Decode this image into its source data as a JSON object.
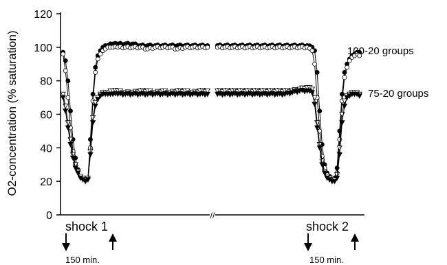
{
  "chart_data": {
    "type": "line",
    "ylabel": "O2-concentration (% saturation)",
    "ylim": [
      0,
      120
    ],
    "yticks": [
      0,
      20,
      40,
      60,
      80,
      100,
      120
    ],
    "x_axis_break": "//",
    "series": [
      {
        "name": "100-20 groups",
        "marker": "filled-circle",
        "segments": [
          [
            [
              0,
              97
            ],
            [
              1,
              92
            ],
            [
              2,
              80
            ],
            [
              3,
              62
            ],
            [
              4,
              45
            ],
            [
              5,
              34
            ],
            [
              6,
              27
            ],
            [
              7,
              23
            ],
            [
              8,
              22
            ],
            [
              9,
              21
            ],
            [
              10,
              22
            ],
            [
              11,
              45
            ],
            [
              12,
              72
            ],
            [
              13,
              88
            ],
            [
              14,
              95
            ],
            [
              15,
              98
            ],
            [
              16,
              100
            ],
            [
              17,
              101
            ],
            [
              18,
              101
            ],
            [
              19,
              102
            ],
            [
              20,
              102
            ],
            [
              22,
              102
            ],
            [
              25,
              102
            ],
            [
              28,
              102
            ],
            [
              31,
              101
            ],
            [
              34,
              101
            ],
            [
              37,
              101
            ],
            [
              40,
              101
            ],
            [
              43,
              101
            ],
            [
              46,
              101
            ],
            [
              49,
              101
            ],
            [
              52,
              101
            ],
            [
              55,
              101
            ],
            [
              58,
              101
            ]
          ],
          [
            [
              62,
              101
            ],
            [
              65,
              101
            ],
            [
              68,
              101
            ],
            [
              71,
              101
            ],
            [
              74,
              101
            ],
            [
              77,
              101
            ],
            [
              80,
              101
            ],
            [
              83,
              101
            ],
            [
              86,
              101
            ],
            [
              89,
              101
            ],
            [
              92,
              101
            ],
            [
              95,
              101
            ],
            [
              98,
              101
            ],
            [
              100,
              100
            ],
            [
              101,
              98
            ],
            [
              102,
              85
            ],
            [
              103,
              62
            ],
            [
              104,
              42
            ],
            [
              105,
              30
            ],
            [
              106,
              25
            ],
            [
              107,
              23
            ],
            [
              108,
              22
            ],
            [
              109,
              22
            ],
            [
              110,
              28
            ],
            [
              111,
              50
            ],
            [
              112,
              72
            ],
            [
              113,
              85
            ],
            [
              114,
              90
            ],
            [
              115,
              93
            ],
            [
              116,
              95
            ],
            [
              117,
              96
            ],
            [
              118,
              97
            ],
            [
              119,
              97
            ]
          ]
        ]
      },
      {
        "name": "100-20 groups",
        "marker": "open-circle",
        "segments": [
          [
            [
              0,
              96
            ],
            [
              1,
              86
            ],
            [
              2,
              70
            ],
            [
              3,
              52
            ],
            [
              4,
              38
            ],
            [
              5,
              30
            ],
            [
              6,
              26
            ],
            [
              7,
              23
            ],
            [
              8,
              22
            ],
            [
              9,
              21
            ],
            [
              10,
              22
            ],
            [
              11,
              40
            ],
            [
              12,
              68
            ],
            [
              13,
              85
            ],
            [
              14,
              93
            ],
            [
              15,
              96
            ],
            [
              16,
              98
            ],
            [
              17,
              99
            ],
            [
              18,
              100
            ],
            [
              19,
              100
            ],
            [
              20,
              100
            ],
            [
              22,
              100
            ],
            [
              25,
              100
            ],
            [
              28,
              100
            ],
            [
              31,
              100
            ],
            [
              34,
              99
            ],
            [
              37,
              100
            ],
            [
              40,
              100
            ],
            [
              43,
              100
            ],
            [
              46,
              99
            ],
            [
              49,
              100
            ],
            [
              52,
              100
            ],
            [
              55,
              100
            ],
            [
              58,
              100
            ]
          ],
          [
            [
              62,
              100
            ],
            [
              65,
              100
            ],
            [
              68,
              100
            ],
            [
              71,
              100
            ],
            [
              74,
              100
            ],
            [
              77,
              100
            ],
            [
              80,
              100
            ],
            [
              83,
              100
            ],
            [
              86,
              100
            ],
            [
              89,
              100
            ],
            [
              92,
              100
            ],
            [
              95,
              100
            ],
            [
              98,
              100
            ],
            [
              100,
              98
            ],
            [
              101,
              90
            ],
            [
              102,
              70
            ],
            [
              103,
              50
            ],
            [
              104,
              35
            ],
            [
              105,
              28
            ],
            [
              106,
              24
            ],
            [
              107,
              22
            ],
            [
              108,
              22
            ],
            [
              109,
              21
            ],
            [
              110,
              25
            ],
            [
              111,
              45
            ],
            [
              112,
              68
            ],
            [
              113,
              82
            ],
            [
              114,
              88
            ],
            [
              115,
              92
            ],
            [
              116,
              94
            ],
            [
              117,
              95
            ],
            [
              118,
              96
            ],
            [
              119,
              95
            ]
          ]
        ]
      },
      {
        "name": "75-20 groups",
        "marker": "open-triangle",
        "segments": [
          [
            [
              0,
              72
            ],
            [
              1,
              65
            ],
            [
              2,
              55
            ],
            [
              3,
              45
            ],
            [
              4,
              36
            ],
            [
              5,
              30
            ],
            [
              6,
              26
            ],
            [
              7,
              23
            ],
            [
              8,
              22
            ],
            [
              9,
              21
            ],
            [
              10,
              22
            ],
            [
              11,
              38
            ],
            [
              12,
              58
            ],
            [
              13,
              67
            ],
            [
              14,
              70
            ],
            [
              15,
              72
            ],
            [
              16,
              73
            ],
            [
              17,
              73
            ],
            [
              18,
              73
            ],
            [
              19,
              74
            ],
            [
              20,
              74
            ],
            [
              22,
              74
            ],
            [
              25,
              73
            ],
            [
              28,
              73
            ],
            [
              31,
              74
            ],
            [
              34,
              74
            ],
            [
              37,
              73
            ],
            [
              40,
              74
            ],
            [
              43,
              73
            ],
            [
              46,
              74
            ],
            [
              49,
              74
            ],
            [
              52,
              73
            ],
            [
              55,
              74
            ],
            [
              58,
              74
            ]
          ],
          [
            [
              62,
              74
            ],
            [
              65,
              74
            ],
            [
              68,
              74
            ],
            [
              71,
              74
            ],
            [
              74,
              74
            ],
            [
              77,
              74
            ],
            [
              80,
              74
            ],
            [
              83,
              74
            ],
            [
              86,
              74
            ],
            [
              89,
              74
            ],
            [
              92,
              74
            ],
            [
              95,
              75
            ],
            [
              98,
              76
            ],
            [
              100,
              75
            ],
            [
              101,
              70
            ],
            [
              102,
              55
            ],
            [
              103,
              42
            ],
            [
              104,
              32
            ],
            [
              105,
              26
            ],
            [
              106,
              23
            ],
            [
              107,
              22
            ],
            [
              108,
              21
            ],
            [
              109,
              21
            ],
            [
              110,
              24
            ],
            [
              111,
              40
            ],
            [
              112,
              60
            ],
            [
              113,
              68
            ],
            [
              114,
              71
            ],
            [
              115,
              72
            ],
            [
              116,
              73
            ],
            [
              117,
              73
            ],
            [
              118,
              73
            ],
            [
              119,
              72
            ]
          ]
        ]
      },
      {
        "name": "75-20 groups",
        "marker": "filled-triangle",
        "segments": [
          [
            [
              0,
              70
            ],
            [
              1,
              62
            ],
            [
              2,
              52
            ],
            [
              3,
              42
            ],
            [
              4,
              34
            ],
            [
              5,
              28
            ],
            [
              6,
              25
            ],
            [
              7,
              22
            ],
            [
              8,
              21
            ],
            [
              9,
              20
            ],
            [
              10,
              21
            ],
            [
              11,
              36
            ],
            [
              12,
              55
            ],
            [
              13,
              65
            ],
            [
              14,
              69
            ],
            [
              15,
              71
            ],
            [
              16,
              72
            ],
            [
              17,
              72
            ],
            [
              18,
              72
            ],
            [
              19,
              72
            ],
            [
              20,
              72
            ],
            [
              22,
              72
            ],
            [
              25,
              72
            ],
            [
              28,
              72
            ],
            [
              31,
              72
            ],
            [
              34,
              72
            ],
            [
              37,
              72
            ],
            [
              40,
              72
            ],
            [
              43,
              72
            ],
            [
              46,
              72
            ],
            [
              49,
              72
            ],
            [
              52,
              72
            ],
            [
              55,
              72
            ],
            [
              58,
              72
            ]
          ],
          [
            [
              62,
              72
            ],
            [
              65,
              72
            ],
            [
              68,
              72
            ],
            [
              71,
              72
            ],
            [
              74,
              72
            ],
            [
              77,
              72
            ],
            [
              80,
              72
            ],
            [
              83,
              72
            ],
            [
              86,
              72
            ],
            [
              89,
              72
            ],
            [
              92,
              73
            ],
            [
              95,
              74
            ],
            [
              98,
              74
            ],
            [
              100,
              73
            ],
            [
              101,
              66
            ],
            [
              102,
              52
            ],
            [
              103,
              40
            ],
            [
              104,
              30
            ],
            [
              105,
              25
            ],
            [
              106,
              22
            ],
            [
              107,
              21
            ],
            [
              108,
              20
            ],
            [
              109,
              20
            ],
            [
              110,
              22
            ],
            [
              111,
              36
            ],
            [
              112,
              55
            ],
            [
              113,
              65
            ],
            [
              114,
              70
            ],
            [
              115,
              71
            ],
            [
              116,
              72
            ],
            [
              117,
              72
            ],
            [
              118,
              72
            ],
            [
              119,
              71
            ]
          ]
        ]
      }
    ],
    "annotations": {
      "label_100_20": "100-20 groups",
      "label_75_20": "75-20 groups",
      "shock1": "shock 1",
      "shock2": "shock 2",
      "duration1": "150 min.",
      "duration2": "150 min."
    }
  }
}
